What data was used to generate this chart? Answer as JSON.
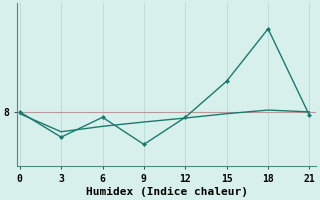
{
  "title": "",
  "xlabel": "Humidex (Indice chaleur)",
  "background_color": "#d8f0ec",
  "line_color": "#1a7a6e",
  "grid_color": "#b8d8d4",
  "ref_line_color": "#b89898",
  "x_ticks": [
    0,
    3,
    6,
    9,
    12,
    15,
    18,
    21
  ],
  "y_tick_val": 8,
  "xlim": [
    -0.2,
    21.5
  ],
  "ylim": [
    6.5,
    11.0
  ],
  "ref_y": 8.0,
  "line1_x": [
    0,
    3,
    6,
    9,
    12,
    15,
    18,
    21
  ],
  "line1_y": [
    8.0,
    7.3,
    7.85,
    7.1,
    7.85,
    8.85,
    10.3,
    7.9
  ],
  "line2_x": [
    0,
    3,
    6,
    9,
    12,
    15,
    18,
    21
  ],
  "line2_y": [
    7.95,
    7.45,
    7.6,
    7.72,
    7.83,
    7.95,
    8.05,
    8.0
  ],
  "marker": "D",
  "marker_size": 2.5,
  "line_width": 1.0,
  "tick_fontsize": 7,
  "xlabel_fontsize": 8,
  "fig_width": 3.2,
  "fig_height": 2.0,
  "dpi": 100
}
